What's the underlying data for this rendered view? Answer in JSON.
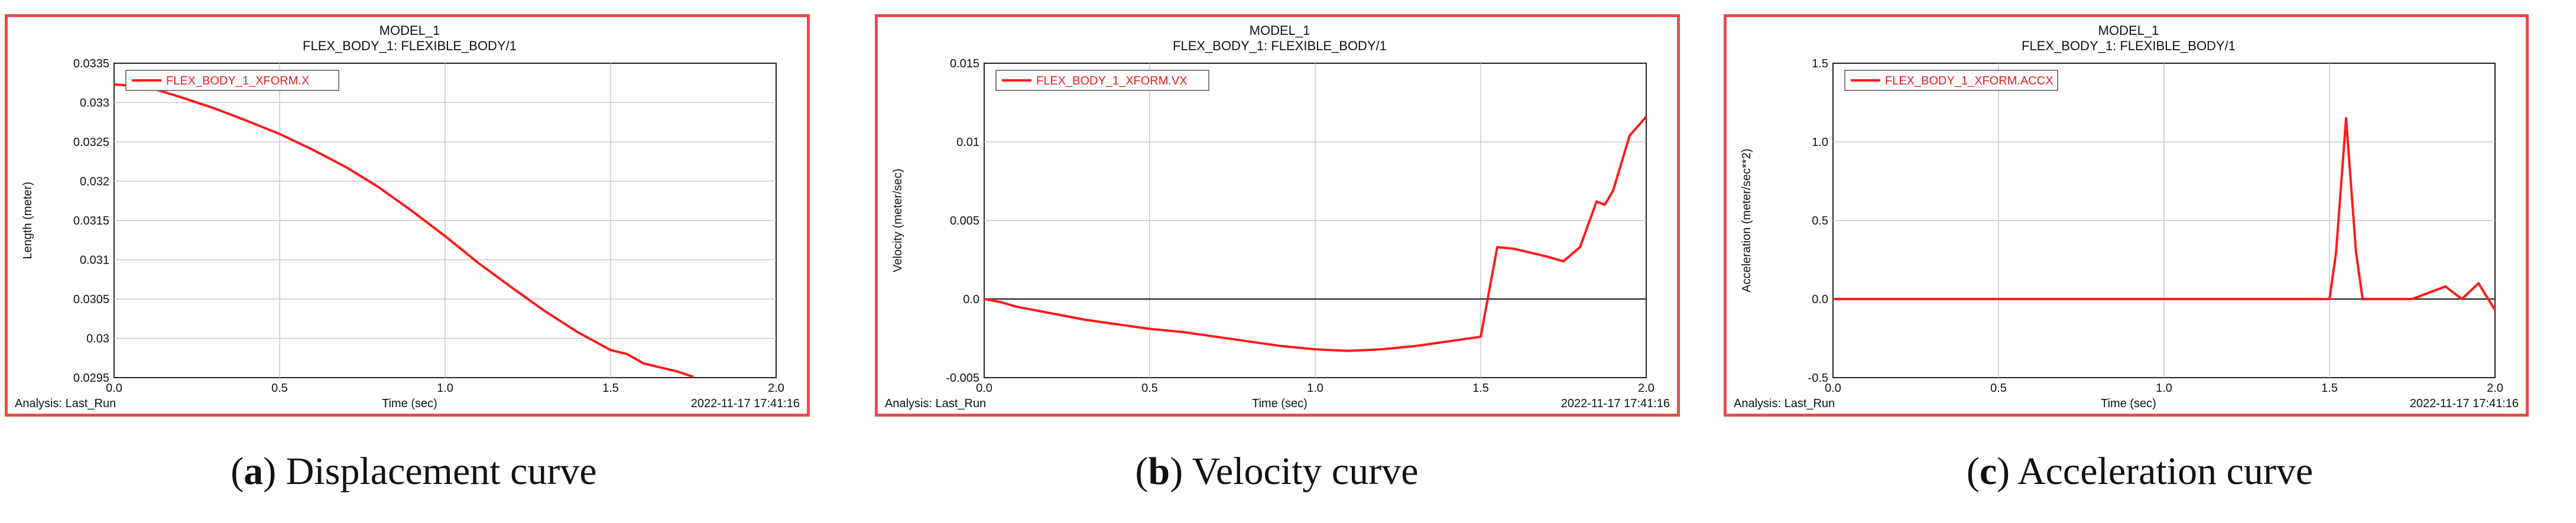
{
  "colors": {
    "border": "#e74c4c",
    "series": "#ff1a1a",
    "grid": "#c8c8c8",
    "zero": "#333333"
  },
  "captions": [
    {
      "letter": "a",
      "text": " Displacement curve"
    },
    {
      "letter": "b",
      "text": " Velocity curve"
    },
    {
      "letter": "c",
      "text": " Acceleration curve"
    }
  ],
  "chart_data": [
    {
      "type": "line",
      "title": "MODEL_1",
      "subtitle": "FLEX_BODY_1: FLEXIBLE_BODY/1",
      "xlabel": "Time (sec)",
      "ylabel": "Length (meter)",
      "legend": "FLEX_BODY_1_XFORM.X",
      "analysis": "Analysis:  Last_Run",
      "timestamp": "2022-11-17 17:41:16",
      "xlim": [
        0.0,
        2.0
      ],
      "ylim": [
        0.0295,
        0.0335
      ],
      "xticks": [
        {
          "v": 0.0,
          "label": "0.0"
        },
        {
          "v": 0.5,
          "label": "0.5"
        },
        {
          "v": 1.0,
          "label": "1.0"
        },
        {
          "v": 1.5,
          "label": "1.5"
        },
        {
          "v": 2.0,
          "label": "2.0"
        }
      ],
      "yticks": [
        {
          "v": 0.0295,
          "label": "0.0295"
        },
        {
          "v": 0.03,
          "label": "0.03"
        },
        {
          "v": 0.0305,
          "label": "0.0305"
        },
        {
          "v": 0.031,
          "label": "0.031"
        },
        {
          "v": 0.0315,
          "label": "0.0315"
        },
        {
          "v": 0.032,
          "label": "0.032"
        },
        {
          "v": 0.0325,
          "label": "0.0325"
        },
        {
          "v": 0.033,
          "label": "0.033"
        },
        {
          "v": 0.0335,
          "label": "0.0335"
        }
      ],
      "x": [
        0.0,
        0.1,
        0.2,
        0.3,
        0.4,
        0.5,
        0.6,
        0.7,
        0.8,
        0.9,
        1.0,
        1.1,
        1.2,
        1.3,
        1.4,
        1.5,
        1.55,
        1.6,
        1.7,
        1.75
      ],
      "y": [
        0.03323,
        0.0332,
        0.03307,
        0.03293,
        0.03277,
        0.0326,
        0.0324,
        0.03218,
        0.03192,
        0.03162,
        0.0313,
        0.03096,
        0.03065,
        0.03035,
        0.03008,
        0.02985,
        0.0298,
        0.02968,
        0.02958,
        0.02951
      ]
    },
    {
      "type": "line",
      "title": "MODEL_1",
      "subtitle": "FLEX_BODY_1: FLEXIBLE_BODY/1",
      "xlabel": "Time (sec)",
      "ylabel": "Velocity (meter/sec)",
      "legend": "FLEX_BODY_1_XFORM.VX",
      "analysis": "Analysis:  Last_Run",
      "timestamp": "2022-11-17 17:41:16",
      "xlim": [
        0.0,
        2.0
      ],
      "ylim": [
        -0.005,
        0.015
      ],
      "xticks": [
        {
          "v": 0.0,
          "label": "0.0"
        },
        {
          "v": 0.5,
          "label": "0.5"
        },
        {
          "v": 1.0,
          "label": "1.0"
        },
        {
          "v": 1.5,
          "label": "1.5"
        },
        {
          "v": 2.0,
          "label": "2.0"
        }
      ],
      "yticks": [
        {
          "v": -0.005,
          "label": "-0.005"
        },
        {
          "v": 0.0,
          "label": "0.0"
        },
        {
          "v": 0.005,
          "label": "0.005"
        },
        {
          "v": 0.01,
          "label": "0.01"
        },
        {
          "v": 0.015,
          "label": "0.015"
        }
      ],
      "x": [
        0.0,
        0.05,
        0.1,
        0.2,
        0.3,
        0.4,
        0.5,
        0.6,
        0.7,
        0.8,
        0.9,
        1.0,
        1.1,
        1.2,
        1.3,
        1.4,
        1.5,
        1.55,
        1.6,
        1.7,
        1.75,
        1.8,
        1.85,
        1.875,
        1.9,
        1.95,
        2.0
      ],
      "y": [
        0.0,
        -0.0002,
        -0.0005,
        -0.0009,
        -0.0013,
        -0.0016,
        -0.0019,
        -0.0021,
        -0.0024,
        -0.0027,
        -0.003,
        -0.0032,
        -0.0033,
        -0.0032,
        -0.003,
        -0.0027,
        -0.0024,
        0.0033,
        0.0032,
        0.0027,
        0.0024,
        0.0033,
        0.0062,
        0.006,
        0.0069,
        0.0104,
        0.0116
      ]
    },
    {
      "type": "line",
      "title": "MODEL_1",
      "subtitle": "FLEX_BODY_1: FLEXIBLE_BODY/1",
      "xlabel": "Time (sec)",
      "ylabel": "Acceleration (meter/sec**2)",
      "legend": "FLEX_BODY_1_XFORM.ACCX",
      "analysis": "Analysis:  Last_Run",
      "timestamp": "2022-11-17 17:41:16",
      "xlim": [
        0.0,
        2.0
      ],
      "ylim": [
        -0.5,
        1.5
      ],
      "xticks": [
        {
          "v": 0.0,
          "label": "0.0"
        },
        {
          "v": 0.5,
          "label": "0.5"
        },
        {
          "v": 1.0,
          "label": "1.0"
        },
        {
          "v": 1.5,
          "label": "1.5"
        },
        {
          "v": 2.0,
          "label": "2.0"
        }
      ],
      "yticks": [
        {
          "v": -0.5,
          "label": "-0.5"
        },
        {
          "v": 0.0,
          "label": "0.0"
        },
        {
          "v": 0.5,
          "label": "0.5"
        },
        {
          "v": 1.0,
          "label": "1.0"
        },
        {
          "v": 1.5,
          "label": "1.5"
        }
      ],
      "x": [
        0.0,
        0.5,
        1.0,
        1.5,
        1.52,
        1.55,
        1.58,
        1.6,
        1.7,
        1.75,
        1.8,
        1.85,
        1.9,
        1.95,
        2.0
      ],
      "y": [
        0.0,
        0.0,
        0.0,
        0.0,
        0.3,
        1.15,
        0.3,
        0.0,
        0.0,
        0.0,
        0.04,
        0.08,
        0.0,
        0.1,
        -0.07
      ]
    }
  ]
}
